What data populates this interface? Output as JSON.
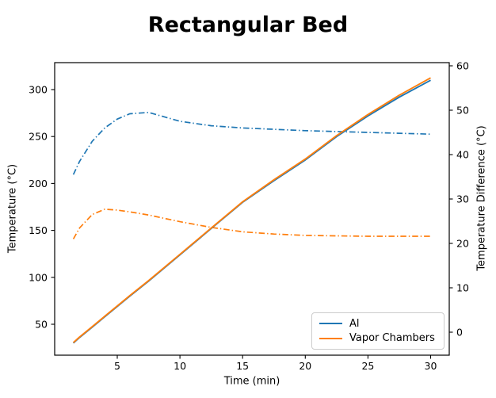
{
  "chart_data": {
    "type": "line",
    "title": "Rectangular Bed",
    "xlabel": "Time (min)",
    "ylabel_left": "Temperature (°C)",
    "ylabel_right": "Temperature Difference (°C)",
    "x_ticks": [
      5,
      10,
      15,
      20,
      25,
      30
    ],
    "y_ticks_left": [
      50,
      100,
      150,
      200,
      250,
      300
    ],
    "y_ticks_right": [
      0,
      10,
      20,
      30,
      40,
      50,
      60
    ],
    "xlim": [
      0,
      31.5
    ],
    "ylim_left": [
      17,
      329
    ],
    "ylim_right": [
      -5,
      61
    ],
    "grid": false,
    "legend": {
      "position": "lower right",
      "entries": [
        {
          "label": "Al",
          "color": "#1f77b4"
        },
        {
          "label": "Vapor Chambers",
          "color": "#ff7f0e"
        }
      ]
    },
    "x": [
      1.5,
      2,
      3,
      4,
      5,
      6,
      7.5,
      10,
      12.5,
      15,
      17.5,
      20,
      22.5,
      25,
      27.5,
      30
    ],
    "series": [
      {
        "name": "Al temperature",
        "axis": "left",
        "style": "solid",
        "color": "#1f77b4",
        "values": [
          30,
          36,
          47,
          58,
          69,
          80,
          96,
          124,
          152,
          180,
          203,
          225,
          250,
          272,
          292,
          310
        ]
      },
      {
        "name": "Vapor Chambers temperature",
        "axis": "left",
        "style": "solid",
        "color": "#ff7f0e",
        "values": [
          30.5,
          36.5,
          47.5,
          58.5,
          69.5,
          80.5,
          96.5,
          124.5,
          152.5,
          180.5,
          204,
          226,
          251,
          273.5,
          294,
          312.5
        ]
      },
      {
        "name": "Al temperature difference",
        "axis": "right",
        "style": "dashdot",
        "color": "#1f77b4",
        "values": [
          35.5,
          38.5,
          43,
          46,
          48,
          49.2,
          49.5,
          47.5,
          46.5,
          46,
          45.7,
          45.4,
          45.2,
          45,
          44.8,
          44.6
        ]
      },
      {
        "name": "Vapor Chambers temperature difference",
        "axis": "right",
        "style": "dashdot",
        "color": "#ff7f0e",
        "values": [
          21,
          23.5,
          26.5,
          27.7,
          27.5,
          27.1,
          26.4,
          24.9,
          23.6,
          22.6,
          22.1,
          21.8,
          21.7,
          21.6,
          21.6,
          21.6
        ]
      }
    ]
  }
}
